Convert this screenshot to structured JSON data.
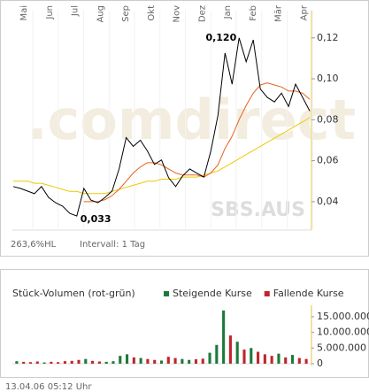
{
  "chart_data": [
    {
      "type": "line",
      "months": [
        "Mai",
        "Jun",
        "Jul",
        "Aug",
        "Sep",
        "Okt",
        "Nov",
        "Dez",
        "Jan",
        "Feb",
        "Mär",
        "Apr"
      ],
      "series": [
        {
          "color": "#000000",
          "values": [
            0.0474,
            0.0465,
            0.0452,
            0.0439,
            0.0474,
            0.0421,
            0.0395,
            0.0378,
            0.0343,
            0.033,
            0.0465,
            0.0408,
            0.0395,
            0.0421,
            0.0452,
            0.056,
            0.0713,
            0.067,
            0.07,
            0.0648,
            0.0582,
            0.0604,
            0.0517,
            0.0474,
            0.0526,
            0.056,
            0.0539,
            0.052,
            0.0648,
            0.0822,
            0.1126,
            0.0974,
            0.12,
            0.1083,
            0.119,
            0.095,
            0.0909,
            0.0887,
            0.093,
            0.0865,
            0.0974,
            0.0909,
            0.0843
          ]
        },
        {
          "color": "#e8601c",
          "values": [
            null,
            null,
            null,
            null,
            null,
            null,
            null,
            null,
            null,
            null,
            0.04,
            0.04,
            0.04,
            0.041,
            0.043,
            0.046,
            0.05,
            0.054,
            0.057,
            0.059,
            0.059,
            0.058,
            0.056,
            0.054,
            0.053,
            0.053,
            0.053,
            0.052,
            0.054,
            0.058,
            0.066,
            0.072,
            0.08,
            0.087,
            0.093,
            0.097,
            0.098,
            0.097,
            0.096,
            0.094,
            0.094,
            0.093,
            0.09
          ]
        },
        {
          "color": "#f0c800",
          "values": [
            0.05,
            0.05,
            0.05,
            0.049,
            0.049,
            0.048,
            0.047,
            0.046,
            0.045,
            0.045,
            0.044,
            0.044,
            0.044,
            0.044,
            0.045,
            0.046,
            0.047,
            0.048,
            0.049,
            0.05,
            0.05,
            0.051,
            0.051,
            0.051,
            0.052,
            0.052,
            0.052,
            0.053,
            0.054,
            0.055,
            0.057,
            0.059,
            0.061,
            0.063,
            0.065,
            0.067,
            0.069,
            0.071,
            0.073,
            0.075,
            0.077,
            0.079,
            0.081
          ]
        }
      ],
      "annotations": [
        {
          "text": "0,120",
          "index": 32
        },
        {
          "text": "0,033",
          "index": 9
        }
      ],
      "ylim": [
        0.027,
        0.132
      ],
      "yticks": [
        {
          "value": 0.04,
          "label": "0,04"
        },
        {
          "value": 0.06,
          "label": "0,06"
        },
        {
          "value": 0.08,
          "label": "0,08"
        },
        {
          "value": 0.1,
          "label": "0,10"
        },
        {
          "value": 0.12,
          "label": "0,12"
        }
      ],
      "watermark": ".comdirect",
      "symbol": "SBS.AUS",
      "range_note": "263,6%HL",
      "interval": "Intervall: 1 Tag"
    },
    {
      "type": "bar",
      "title": "Stück-Volumen (rot-grün)",
      "legend": [
        {
          "name": "Steigende Kurse",
          "color": "#1e7a3c"
        },
        {
          "name": "Fallende Kurse",
          "color": "#c0262c"
        }
      ],
      "values": [
        800000,
        600000,
        500000,
        700000,
        400000,
        600000,
        500000,
        800000,
        900000,
        1200000,
        1500000,
        900000,
        700000,
        600000,
        800000,
        2500000,
        3000000,
        2000000,
        1800000,
        1500000,
        1200000,
        1000000,
        2200000,
        1800000,
        1500000,
        1200000,
        1400000,
        1600000,
        3500000,
        6000000,
        17000000,
        9000000,
        7000000,
        4500000,
        5000000,
        3800000,
        3000000,
        2500000,
        3200000,
        2000000,
        2800000,
        1800000,
        1500000
      ],
      "colors": [
        "#1e7a3c",
        "#c0262c",
        "#c0262c",
        "#c0262c",
        "#1e7a3c",
        "#c0262c",
        "#c0262c",
        "#c0262c",
        "#c0262c",
        "#c0262c",
        "#1e7a3c",
        "#c0262c",
        "#c0262c",
        "#1e7a3c",
        "#1e7a3c",
        "#1e7a3c",
        "#1e7a3c",
        "#c0262c",
        "#1e7a3c",
        "#c0262c",
        "#c0262c",
        "#1e7a3c",
        "#c0262c",
        "#c0262c",
        "#1e7a3c",
        "#1e7a3c",
        "#c0262c",
        "#c0262c",
        "#1e7a3c",
        "#1e7a3c",
        "#1e7a3c",
        "#c0262c",
        "#1e7a3c",
        "#c0262c",
        "#1e7a3c",
        "#c0262c",
        "#c0262c",
        "#c0262c",
        "#1e7a3c",
        "#c0262c",
        "#1e7a3c",
        "#c0262c",
        "#c0262c"
      ],
      "ylim": [
        0,
        17800000
      ],
      "yticks": [
        0,
        {
          "value": 5000000,
          "label": "5.000.000"
        },
        {
          "value": 10000000,
          "label": "10.000.000"
        },
        {
          "value": 15000000,
          "label": "15.000.000"
        }
      ],
      "footer": "13.04.06   05:12 Uhr"
    }
  ]
}
